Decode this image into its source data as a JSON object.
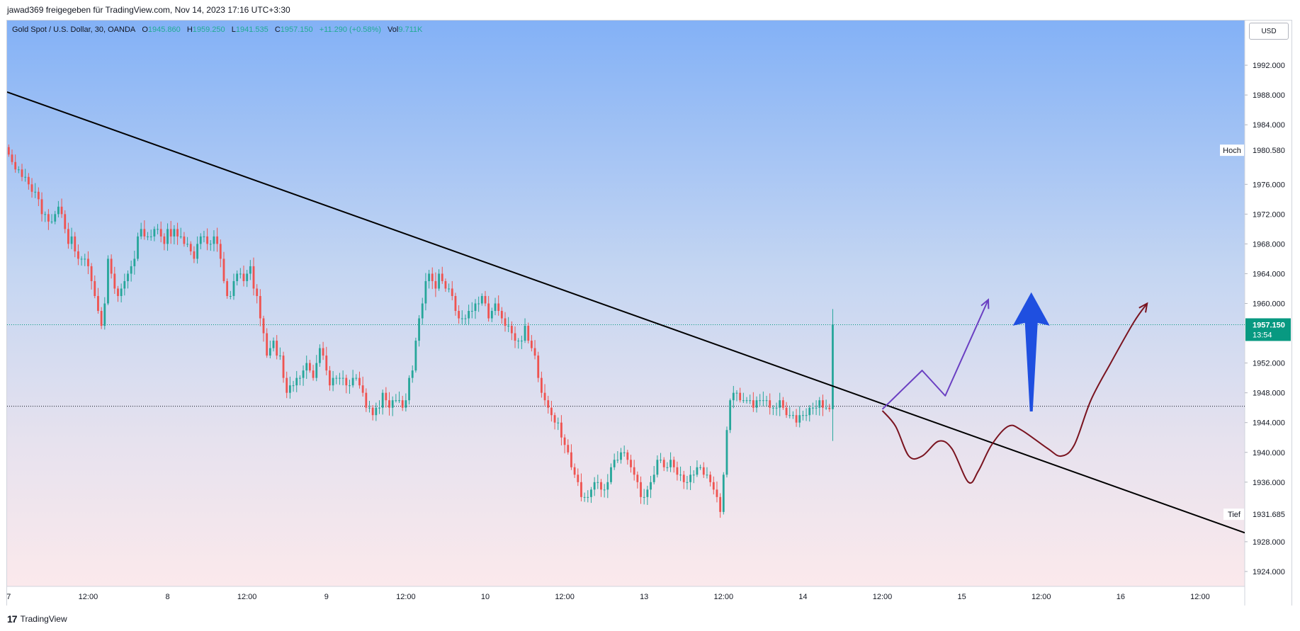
{
  "header": {
    "shared_text": "jawad369 freigegeben für TradingView.com, Nov 14, 2023 17:16 UTC+3:30"
  },
  "legend": {
    "symbol": "Gold Spot / U.S. Dollar, 30, OANDA",
    "o_label": "O",
    "o_value": "1945.860",
    "h_label": "H",
    "h_value": "1959.250",
    "l_label": "L",
    "l_value": "1941.535",
    "c_label": "C",
    "c_value": "1957.150",
    "change": "+11.290 (+0.58%)",
    "vol_label": "Vol",
    "vol_value": "9.711K"
  },
  "currency_button": "USD",
  "footer": {
    "logo_glyph": "17",
    "brand": "TradingView"
  },
  "colors": {
    "up": "#26a69a",
    "down": "#ef5350",
    "last_price_badge": "#089981",
    "trendline": "#000000",
    "forecast_purple": "#6a3fc2",
    "forecast_maroon": "#7a1420",
    "arrow_blue": "#1f4fe0"
  },
  "chart_data": {
    "type": "candlestick",
    "title": "Gold Spot / U.S. Dollar, 30, OANDA",
    "ylim": [
      1922,
      1998
    ],
    "y_ticks": [
      1992,
      1988,
      1984,
      1976,
      1972,
      1968,
      1964,
      1960,
      1952,
      1948,
      1944,
      1940,
      1936,
      1928,
      1924
    ],
    "y_tick_labels": [
      "1992.000",
      "1988.000",
      "1984.000",
      "1976.000",
      "1972.000",
      "1968.000",
      "1964.000",
      "1960.000",
      "1952.000",
      "1948.000",
      "1944.000",
      "1940.000",
      "1936.000",
      "1928.000",
      "1924.000"
    ],
    "x_ticks": [
      {
        "t": 0,
        "label": "7"
      },
      {
        "t": 24,
        "label": "12:00"
      },
      {
        "t": 48,
        "label": "8"
      },
      {
        "t": 72,
        "label": "12:00"
      },
      {
        "t": 96,
        "label": "9"
      },
      {
        "t": 120,
        "label": "12:00"
      },
      {
        "t": 144,
        "label": "10"
      },
      {
        "t": 168,
        "label": "12:00"
      },
      {
        "t": 192,
        "label": "13"
      },
      {
        "t": 216,
        "label": "12:00"
      },
      {
        "t": 240,
        "label": "14"
      },
      {
        "t": 264,
        "label": "12:00"
      },
      {
        "t": 288,
        "label": "15"
      },
      {
        "t": 312,
        "label": "12:00"
      },
      {
        "t": 336,
        "label": "16"
      },
      {
        "t": 360,
        "label": "12:00"
      }
    ],
    "x_range": [
      -0.5,
      373.5
    ],
    "price_path_note": "close values per 30-minute bar",
    "closes": [
      1980,
      1979,
      1978,
      1978,
      1977,
      1977,
      1976,
      1975,
      1975,
      1974,
      1972,
      1972,
      1971,
      1971,
      1972,
      1973,
      1972,
      1970,
      1968,
      1969,
      1967,
      1966,
      1966,
      1966,
      1965,
      1963,
      1961,
      1959,
      1957,
      1960,
      1966,
      1964,
      1962,
      1961,
      1962,
      1963,
      1964,
      1965,
      1966,
      1969,
      1970,
      1969,
      1969,
      1969,
      1970,
      1970,
      1969,
      1968,
      1970,
      1969,
      1970,
      1969,
      1969,
      1968,
      1968,
      1967,
      1966,
      1968,
      1969,
      1969,
      1968,
      1968,
      1969,
      1968,
      1966,
      1963,
      1961,
      1961,
      1963,
      1964,
      1964,
      1963,
      1964,
      1965,
      1962,
      1961,
      1958,
      1956,
      1953,
      1954,
      1955,
      1953,
      1953,
      1950,
      1948,
      1949,
      1949,
      1950,
      1950,
      1951,
      1952,
      1951,
      1950,
      1952,
      1954,
      1953,
      1951,
      1949,
      1950,
      1950,
      1950,
      1950,
      1949,
      1949,
      1950,
      1950,
      1949,
      1948,
      1946,
      1946,
      1945,
      1946,
      1946,
      1948,
      1947,
      1946,
      1947,
      1947,
      1947,
      1946,
      1947,
      1950,
      1951,
      1955,
      1958,
      1960,
      1963,
      1964,
      1963,
      1962,
      1964,
      1963,
      1962,
      1962,
      1961,
      1959,
      1958,
      1958,
      1958,
      1959,
      1959,
      1960,
      1960,
      1961,
      1960,
      1958,
      1959,
      1960,
      1959,
      1958,
      1957,
      1957,
      1956,
      1955,
      1955,
      1955,
      1957,
      1955,
      1954,
      1953,
      1950,
      1948,
      1947,
      1946,
      1945,
      1944,
      1944,
      1942,
      1941,
      1940,
      1938,
      1937,
      1936,
      1934,
      1934,
      1934,
      1935,
      1936,
      1936,
      1935,
      1935,
      1936,
      1938,
      1939,
      1939,
      1940,
      1940,
      1939,
      1938,
      1937,
      1936,
      1934,
      1934,
      1935,
      1936,
      1937,
      1939,
      1939,
      1938,
      1938,
      1939,
      1938,
      1937,
      1937,
      1936,
      1936,
      1937,
      1937,
      1938,
      1938,
      1937,
      1937,
      1936,
      1935,
      1934,
      1932,
      1937,
      1943,
      1947,
      1948,
      1948,
      1947,
      1947,
      1947,
      1947,
      1946,
      1947,
      1947,
      1947,
      1947,
      1946,
      1946,
      1946,
      1947,
      1946,
      1945,
      1945,
      1945,
      1944,
      1945,
      1945,
      1945,
      1946,
      1946,
      1946,
      1947,
      1946,
      1946,
      1945.8,
      1957.15
    ],
    "last_price": {
      "value": 1957.15,
      "label": "1957.150",
      "countdown": "13:54"
    },
    "high_marker": {
      "value": 1980.58,
      "label_word": "Hoch",
      "label_value": "1980.580"
    },
    "low_marker": {
      "value": 1931.685,
      "label_word": "Tief",
      "label_value": "1931.685"
    },
    "reference_line": 1946.2,
    "trendline": {
      "t1": -0.5,
      "v1": 1988.4,
      "t2": 373.5,
      "v2": 1929.2
    },
    "annotations": {
      "purple_path": [
        [
          264,
          1945.8
        ],
        [
          276,
          1951
        ],
        [
          283,
          1947.6
        ],
        [
          296,
          1960.5
        ]
      ],
      "maroon_path": [
        [
          264,
          1945.6
        ],
        [
          268,
          1943.5
        ],
        [
          272,
          1939.5
        ],
        [
          276,
          1939.5
        ],
        [
          281,
          1941.5
        ],
        [
          285,
          1940.5
        ],
        [
          290,
          1936
        ],
        [
          293,
          1937.5
        ],
        [
          297,
          1941
        ],
        [
          302,
          1943.5
        ],
        [
          306,
          1943
        ],
        [
          314,
          1940.5
        ],
        [
          318,
          1939.5
        ],
        [
          322,
          1941
        ],
        [
          327,
          1947
        ],
        [
          333,
          1952
        ],
        [
          340,
          1957.5
        ],
        [
          344,
          1960
        ]
      ],
      "blue_arrow": {
        "t": 309,
        "from": 1945.5,
        "to": 1961.5
      }
    }
  }
}
